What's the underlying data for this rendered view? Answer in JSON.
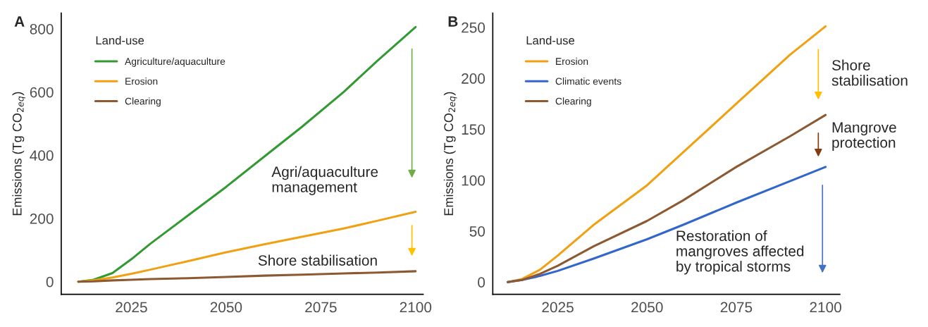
{
  "chart_data": [
    {
      "type": "line",
      "title": "A",
      "ylabel": "Emissions (Tg CO$_{2eq}$)",
      "legend_title": "Land-use",
      "legend": "top left",
      "grid": false,
      "xlim": [
        2006.5,
        2102
      ],
      "xticks": [
        2025,
        2050,
        2075,
        2100
      ],
      "ylim": [
        -40,
        850
      ],
      "yticks": [
        0,
        200,
        400,
        600,
        800
      ],
      "x": [
        2011,
        2015,
        2020,
        2025,
        2030,
        2040,
        2050,
        2060,
        2070,
        2081,
        2090,
        2100
      ],
      "series": [
        {
          "name": "Agriculture/aquaculture",
          "color": "#339933",
          "values": [
            0,
            6,
            27,
            71,
            120,
            210,
            300,
            395,
            490,
            600,
            700,
            806
          ]
        },
        {
          "name": "Erosion",
          "color": "#f0a010",
          "values": [
            0,
            4,
            13,
            25,
            38,
            65,
            93,
            118,
            142,
            168,
            193,
            221
          ]
        },
        {
          "name": "Clearing",
          "color": "#8c5a32",
          "values": [
            0,
            1,
            4,
            6,
            8,
            11,
            15,
            19,
            22,
            26,
            29,
            33
          ]
        }
      ],
      "annotations": [
        "Agri/aquaculture\nmanagement",
        "Shore stabilisation"
      ]
    },
    {
      "type": "line",
      "title": "B",
      "ylabel": "Emissions (Tg CO$_{2eq}$)",
      "legend_title": "Land-use",
      "legend": "top left",
      "grid": false,
      "xlim": [
        2006.8,
        2104
      ],
      "xticks": [
        2025,
        2050,
        2075,
        2100
      ],
      "ylim": [
        -12,
        264
      ],
      "yticks": [
        0,
        50,
        100,
        150,
        200,
        250
      ],
      "x": [
        2011,
        2015,
        2020,
        2025,
        2035,
        2050,
        2060,
        2075,
        2090,
        2100
      ],
      "series": [
        {
          "name": "Erosion",
          "color": "#f0a010",
          "values": [
            0,
            3,
            12,
            26,
            56,
            95,
            127,
            175,
            223,
            251
          ]
        },
        {
          "name": "Climatic events",
          "color": "#3366cc",
          "values": [
            0,
            2,
            6,
            11,
            23,
            42,
            56,
            78,
            99,
            113
          ]
        },
        {
          "name": "Clearing",
          "color": "#8c5a32",
          "values": [
            0,
            2,
            8,
            16,
            35,
            60,
            80,
            113,
            143,
            164
          ]
        }
      ],
      "annotations": [
        "Shore\nstabilisation",
        "Mangrove\nprotection",
        "Restoration of\nmangroves affected\nby tropical storms"
      ]
    }
  ]
}
